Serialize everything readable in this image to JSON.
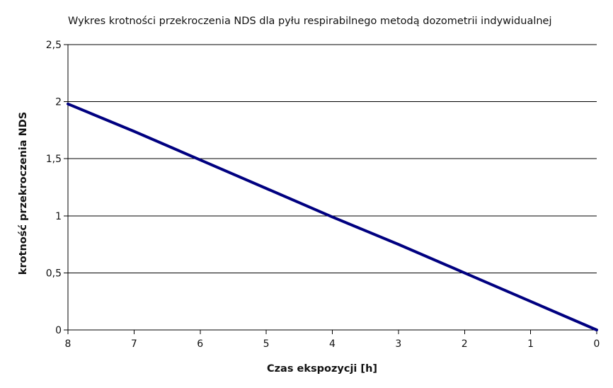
{
  "chart_data": {
    "type": "line",
    "title": "Wykres krotności przekroczenia NDS dla pyłu respirabilnego metodą dozometrii indywidualnej",
    "xlabel": "Czas ekspozycji [h]",
    "ylabel": "krotność przekroczenia NDS",
    "x_reversed": true,
    "xlim": [
      0,
      8
    ],
    "ylim": [
      0,
      2.5
    ],
    "x_ticks": [
      {
        "value": 8,
        "label": "8"
      },
      {
        "value": 7,
        "label": "7"
      },
      {
        "value": 6,
        "label": "6"
      },
      {
        "value": 5,
        "label": "5"
      },
      {
        "value": 4,
        "label": "4"
      },
      {
        "value": 3,
        "label": "3"
      },
      {
        "value": 2,
        "label": "2"
      },
      {
        "value": 1,
        "label": "1"
      },
      {
        "value": 0,
        "label": "0"
      }
    ],
    "y_ticks": [
      {
        "value": 0,
        "label": "0"
      },
      {
        "value": 0.5,
        "label": "0,5"
      },
      {
        "value": 1,
        "label": "1"
      },
      {
        "value": 1.5,
        "label": "1,5"
      },
      {
        "value": 2,
        "label": "2"
      },
      {
        "value": 2.5,
        "label": "2,5"
      }
    ],
    "grid": {
      "horizontal": true,
      "vertical": false
    },
    "legend": "none",
    "series": [
      {
        "color": "#000080",
        "x": [
          8,
          7,
          6,
          5,
          4,
          3,
          2,
          1,
          0
        ],
        "y": [
          1.98,
          1.74,
          1.49,
          1.24,
          0.99,
          0.75,
          0.5,
          0.25,
          0
        ]
      }
    ]
  }
}
